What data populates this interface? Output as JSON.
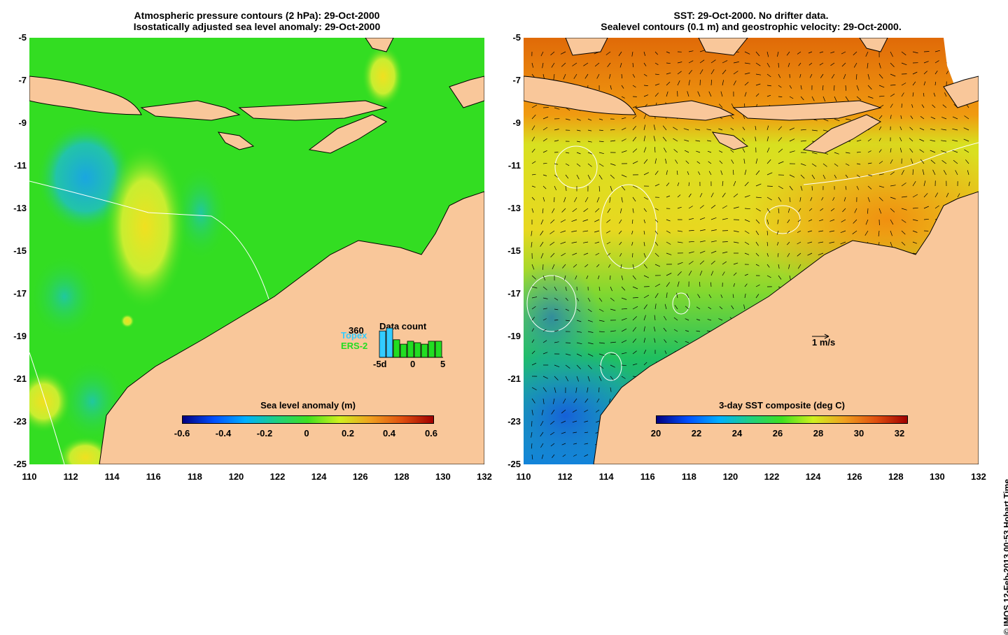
{
  "left_panel": {
    "title_line1": "Atmospheric pressure contours (2 hPa): 29-Oct-2000",
    "title_line2": "Isostatically adjusted sea level anomaly: 29-Oct-2000",
    "colorbar": {
      "title": "Sea level anomaly (m)",
      "ticks": [
        "-0.6",
        "-0.4",
        "-0.2",
        "0",
        "0.2",
        "0.4",
        "0.6"
      ]
    },
    "data_count": {
      "title": "Data count",
      "max_label": "360",
      "topex_label": "Topex",
      "ers_label": "ERS-2",
      "xticks": [
        "-5d",
        "0",
        "5"
      ],
      "topex_color": "#33ccff",
      "ers_color": "#22dd22",
      "bars": [
        0.9,
        1.0,
        0.6,
        0.45,
        0.55,
        0.5,
        0.45,
        0.55,
        0.55
      ]
    }
  },
  "right_panel": {
    "title_line1": "SST: 29-Oct-2000. No drifter data.",
    "title_line2": "Sealevel contours (0.1 m) and geostrophic velocity: 29-Oct-2000.",
    "colorbar": {
      "title": "3-day SST composite (deg C)",
      "ticks": [
        "20",
        "22",
        "24",
        "26",
        "28",
        "30",
        "32"
      ]
    },
    "velocity_scale_label": "1 m/s"
  },
  "y_ticks": [
    "-5",
    "-7",
    "-9",
    "-11",
    "-13",
    "-15",
    "-17",
    "-19",
    "-21",
    "-23",
    "-25"
  ],
  "x_ticks": [
    "110",
    "112",
    "114",
    "116",
    "118",
    "120",
    "122",
    "124",
    "126",
    "128",
    "130",
    "132"
  ],
  "credit": "© IMOS 12-Feb-2013 00:53 Hobart Time",
  "colors": {
    "land": "#f9c79a",
    "ocean_anomaly_base": "#33dd22",
    "sst_warm": "#e8780c",
    "sst_cool": "#1a9ae6"
  }
}
